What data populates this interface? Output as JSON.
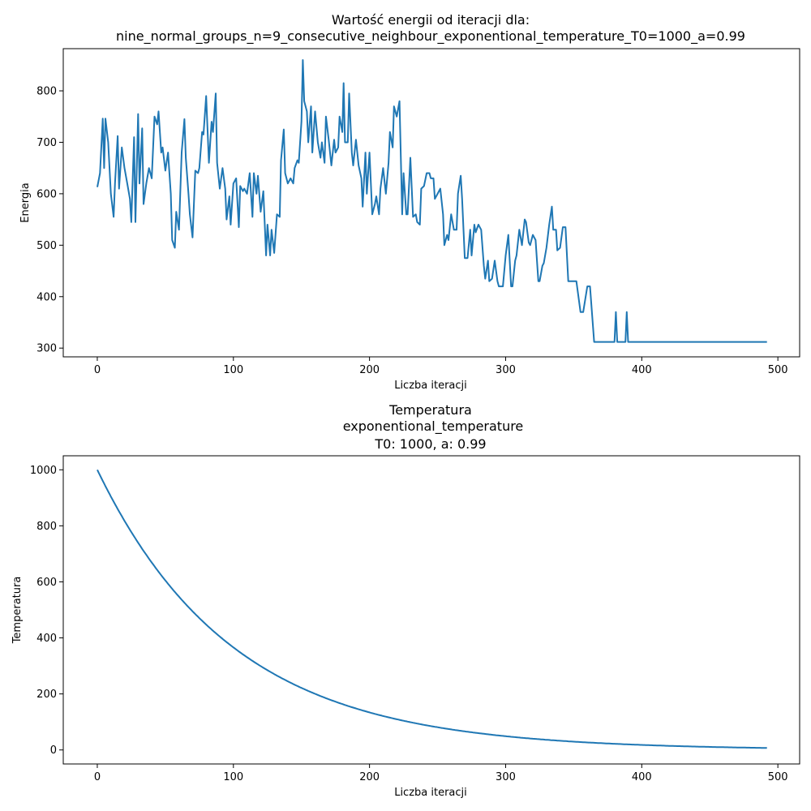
{
  "chart_data": [
    {
      "type": "line",
      "title_lines": [
        "Wartość energii od iteracji dla:",
        "nine_normal_groups_n=9_consecutive_neighbour_exponentional_temperature_T0=1000_a=0.99"
      ],
      "xlabel": "Liczba iteracji",
      "ylabel": "Energia",
      "xlim": [
        -25,
        516
      ],
      "ylim": [
        283,
        882
      ],
      "xticks": [
        "0",
        "100",
        "200",
        "300",
        "400",
        "500"
      ],
      "yticks": [
        "300",
        "400",
        "500",
        "600",
        "700",
        "800"
      ],
      "grid": false,
      "color": "#1f77b4",
      "series": [
        {
          "x": [
            0,
            2,
            4,
            5,
            6,
            8,
            10,
            12,
            13,
            15,
            16,
            18,
            20,
            22,
            24,
            25,
            27,
            28,
            30,
            31,
            33,
            34,
            36,
            38,
            40,
            42,
            44,
            45,
            47,
            48,
            50,
            52,
            54,
            55,
            57,
            58,
            60,
            62,
            64,
            65,
            67,
            68,
            70,
            72,
            74,
            75,
            77,
            78,
            80,
            82,
            84,
            85,
            87,
            88,
            90,
            92,
            94,
            95,
            97,
            98,
            100,
            102,
            104,
            105,
            107,
            108,
            110,
            112,
            114,
            115,
            117,
            118,
            120,
            122,
            124,
            125,
            127,
            128,
            130,
            132,
            134,
            135,
            137,
            138,
            140,
            142,
            144,
            145,
            147,
            148,
            150,
            151,
            152,
            154,
            155,
            157,
            158,
            160,
            162,
            164,
            165,
            167,
            168,
            170,
            172,
            174,
            175,
            177,
            178,
            180,
            181,
            182,
            184,
            185,
            187,
            188,
            190,
            192,
            194,
            195,
            197,
            198,
            200,
            202,
            204,
            205,
            207,
            208,
            210,
            212,
            214,
            215,
            217,
            218,
            220,
            222,
            224,
            225,
            227,
            228,
            230,
            232,
            234,
            235,
            237,
            238,
            240,
            242,
            244,
            245,
            247,
            248,
            250,
            252,
            254,
            255,
            257,
            258,
            260,
            262,
            264,
            265,
            267,
            268,
            270,
            272,
            274,
            275,
            277,
            278,
            280,
            282,
            284,
            285,
            287,
            288,
            290,
            292,
            294,
            295,
            297,
            298,
            300,
            302,
            304,
            305,
            307,
            308,
            310,
            312,
            314,
            315,
            317,
            318,
            320,
            322,
            324,
            325,
            327,
            328,
            330,
            332,
            334,
            335,
            337,
            338,
            340,
            342,
            344,
            346,
            350,
            352,
            355,
            357,
            360,
            362,
            365,
            370,
            378,
            380,
            381,
            382,
            385,
            388,
            389,
            390,
            392,
            395,
            400,
            420,
            450,
            480,
            492
          ],
          "y": [
            613,
            640,
            746,
            650,
            746,
            700,
            600,
            555,
            620,
            712,
            610,
            690,
            650,
            620,
            590,
            545,
            710,
            545,
            755,
            620,
            727,
            580,
            620,
            650,
            630,
            750,
            735,
            760,
            680,
            690,
            645,
            680,
            600,
            510,
            495,
            565,
            530,
            680,
            745,
            670,
            600,
            560,
            515,
            645,
            640,
            650,
            720,
            715,
            790,
            660,
            740,
            720,
            795,
            660,
            610,
            650,
            610,
            550,
            595,
            540,
            620,
            630,
            535,
            615,
            605,
            610,
            600,
            640,
            555,
            640,
            600,
            635,
            565,
            605,
            480,
            540,
            480,
            530,
            485,
            560,
            555,
            665,
            725,
            640,
            620,
            630,
            620,
            650,
            665,
            660,
            740,
            860,
            780,
            760,
            700,
            770,
            680,
            760,
            700,
            670,
            700,
            660,
            750,
            705,
            655,
            705,
            680,
            690,
            750,
            720,
            815,
            700,
            700,
            795,
            680,
            655,
            705,
            655,
            630,
            575,
            680,
            600,
            680,
            560,
            580,
            595,
            560,
            610,
            650,
            600,
            660,
            720,
            690,
            770,
            750,
            780,
            560,
            640,
            560,
            560,
            670,
            555,
            560,
            545,
            540,
            610,
            615,
            640,
            640,
            630,
            630,
            590,
            600,
            610,
            560,
            500,
            520,
            510,
            560,
            530,
            530,
            600,
            635,
            590,
            475,
            475,
            530,
            480,
            540,
            525,
            540,
            530,
            460,
            435,
            470,
            430,
            435,
            470,
            430,
            420,
            420,
            420,
            480,
            520,
            420,
            420,
            470,
            480,
            530,
            500,
            550,
            545,
            505,
            500,
            520,
            510,
            430,
            430,
            460,
            465,
            495,
            540,
            575,
            530,
            530,
            490,
            495,
            535,
            535,
            430,
            430,
            430,
            370,
            370,
            420,
            420,
            312,
            312,
            312,
            312,
            370,
            312,
            312,
            312,
            370,
            312,
            312,
            312,
            312,
            312,
            312,
            312,
            312
          ]
        }
      ]
    },
    {
      "type": "line",
      "title_lines": [
        "Temperatura",
        "exponentional_temperature",
        "T0: 1000, a: 0.99"
      ],
      "xlabel": "Liczba iteracji",
      "ylabel": "Temperatura",
      "xlim": [
        -25,
        516
      ],
      "ylim": [
        -50,
        1050
      ],
      "xticks": [
        "0",
        "100",
        "200",
        "300",
        "400",
        "500"
      ],
      "yticks": [
        "0",
        "200",
        "400",
        "600",
        "800",
        "1000"
      ],
      "grid": false,
      "color": "#1f77b4",
      "function": "T(i) = 1000 * 0.99^i, i = 0..492",
      "series": [
        {
          "x": [
            0,
            25,
            50,
            75,
            100,
            150,
            200,
            250,
            300,
            350,
            400,
            450,
            492
          ],
          "y": [
            1000,
            778,
            605,
            471,
            366,
            221,
            134,
            81,
            49,
            30,
            18,
            11,
            7
          ]
        }
      ]
    }
  ]
}
